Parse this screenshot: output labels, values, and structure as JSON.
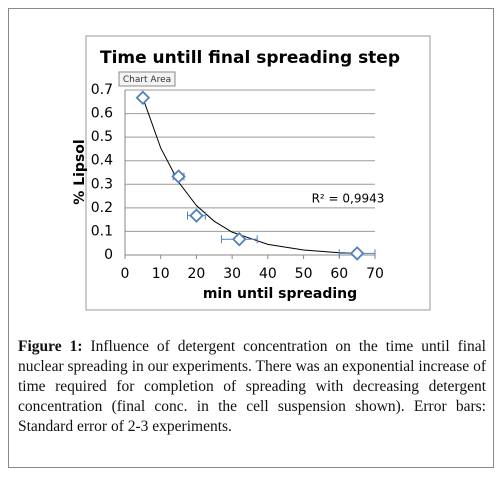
{
  "chart_data": {
    "type": "scatter",
    "title": "Time untill final spreading step",
    "x_label": "min until spreading",
    "y_label": "% Lipsol",
    "tooltip": "Chart Area",
    "annotation": "R² = 0,9943",
    "x": [
      5,
      15,
      20,
      32,
      65
    ],
    "values": [
      0.667,
      0.333,
      0.167,
      0.067,
      0.0067
    ],
    "x_errors": [
      0,
      1.5,
      2.5,
      5,
      5
    ],
    "color": "#4f81bd",
    "trendline": {
      "x": [
        5,
        10,
        15,
        20,
        25,
        30,
        40,
        50,
        60,
        65
      ],
      "values": [
        0.667,
        0.454,
        0.309,
        0.21,
        0.143,
        0.097,
        0.045,
        0.021,
        0.0097,
        0.0067
      ],
      "color": "#000000"
    },
    "xlim": [
      0,
      70
    ],
    "xticks": [
      0,
      10,
      20,
      30,
      40,
      50,
      60,
      70
    ],
    "ylim": [
      0,
      0.7
    ],
    "yticks": [
      0,
      0.1,
      0.2,
      0.3,
      0.4,
      0.5,
      0.6,
      0.7
    ],
    "grid": true
  },
  "caption": {
    "label": "Figure 1:",
    "text": "Influence of detergent concentration on the time until final nuclear spreading in our experiments. There was an exponential increase of time required for completion of spreading with decreasing detergent concentration (final conc. in the cell suspension shown). Error bars: Standard error of 2-3 experiments."
  }
}
